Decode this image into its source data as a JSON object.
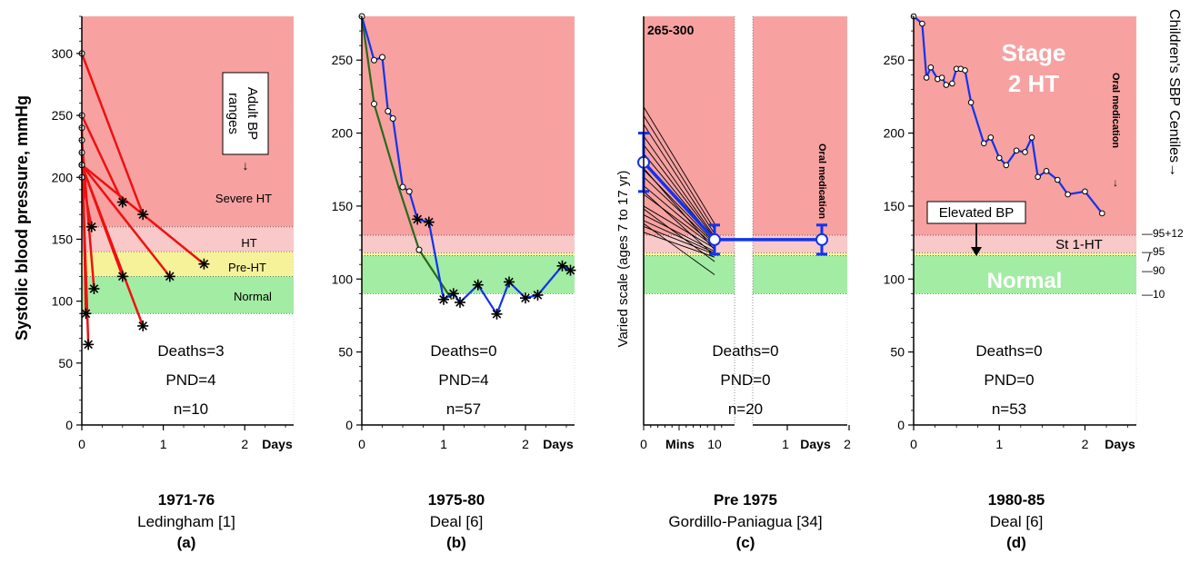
{
  "figure": {
    "y_axis_label": "Systolic blood pressure, mmHg",
    "varied_scale_label": "Varied scale (ages 7 to 17 yr)",
    "centiles_label": "Children's SBP Centiles→"
  },
  "colors": {
    "severe": "#f7a1a1",
    "ht": "#f9c8c8",
    "preht": "#f6f29a",
    "normal": "#a3eca3",
    "red_line": "#ee1111",
    "blue_line": "#1133ee",
    "green_line": "#2a6a1a"
  },
  "chart_data": [
    {
      "id": "a",
      "type": "line",
      "title_year": "1971-76",
      "title_source": "Ledingham [1]",
      "label": "(a)",
      "xlabel": "Days",
      "x_ticks": [
        "0",
        "1",
        "2"
      ],
      "y_ticks": [
        "0",
        "50",
        "100",
        "150",
        "200",
        "250",
        "300"
      ],
      "ylim": [
        0,
        330
      ],
      "xlim": [
        0,
        2.6
      ],
      "zones": [
        {
          "name": "Severe HT",
          "from": 160,
          "to": 330,
          "color": "severe"
        },
        {
          "name": "HT",
          "from": 140,
          "to": 160,
          "color": "ht"
        },
        {
          "name": "Pre-HT",
          "from": 120,
          "to": 140,
          "color": "preht"
        },
        {
          "name": "Normal",
          "from": 90,
          "to": 120,
          "color": "normal"
        }
      ],
      "annotation": "Adult BP ranges",
      "stats": [
        "Deaths=3",
        "PND=4",
        "n=10"
      ],
      "series": [
        {
          "color": "red_line",
          "points": [
            [
              0,
              300
            ],
            [
              0.75,
              170
            ]
          ]
        },
        {
          "color": "red_line",
          "points": [
            [
              0,
              250
            ],
            [
              0.5,
              180
            ]
          ]
        },
        {
          "color": "red_line",
          "points": [
            [
              0,
              240
            ],
            [
              0.05,
              90
            ]
          ]
        },
        {
          "color": "red_line",
          "points": [
            [
              0,
              230
            ],
            [
              0.15,
              110
            ]
          ]
        },
        {
          "color": "red_line",
          "points": [
            [
              0,
              220
            ],
            [
              0.08,
              65
            ]
          ]
        },
        {
          "color": "red_line",
          "points": [
            [
              0,
              210
            ],
            [
              1.5,
              130
            ]
          ]
        },
        {
          "color": "red_line",
          "points": [
            [
              0,
              210
            ],
            [
              0.75,
              80
            ]
          ]
        },
        {
          "color": "red_line",
          "points": [
            [
              0,
              210
            ],
            [
              1.08,
              120
            ]
          ]
        },
        {
          "color": "red_line",
          "points": [
            [
              0,
              210
            ],
            [
              0.5,
              120
            ]
          ]
        },
        {
          "color": "red_line",
          "points": [
            [
              0,
              200
            ],
            [
              0.12,
              160
            ]
          ]
        }
      ]
    },
    {
      "id": "b",
      "type": "line",
      "title_year": "1975-80",
      "title_source": "Deal [6]",
      "label": "(b)",
      "xlabel": "Days",
      "x_ticks": [
        "0",
        "1",
        "2"
      ],
      "y_ticks": [
        "0",
        "50",
        "100",
        "150",
        "200",
        "250"
      ],
      "ylim": [
        0,
        280
      ],
      "xlim": [
        0,
        2.6
      ],
      "zones": [
        {
          "name": "",
          "from": 130,
          "to": 280,
          "color": "severe"
        },
        {
          "name": "",
          "from": 118,
          "to": 130,
          "color": "ht"
        },
        {
          "name": "",
          "from": 116,
          "to": 118,
          "color": "preht"
        },
        {
          "name": "",
          "from": 90,
          "to": 116,
          "color": "normal"
        }
      ],
      "stats": [
        "Deaths=0",
        "PND=4",
        "n=57"
      ],
      "series": [
        {
          "color": "blue_line",
          "points": [
            [
              0,
              280
            ],
            [
              0.15,
              250
            ],
            [
              0.25,
              252
            ],
            [
              0.32,
              215
            ],
            [
              0.38,
              210
            ],
            [
              0.5,
              163
            ],
            [
              0.58,
              160
            ],
            [
              0.68,
              141
            ],
            [
              0.82,
              139
            ],
            [
              1.0,
              86
            ],
            [
              1.12,
              90
            ],
            [
              1.2,
              84
            ],
            [
              1.42,
              96
            ],
            [
              1.65,
              76
            ],
            [
              1.8,
              98
            ],
            [
              2.0,
              87
            ],
            [
              2.15,
              89
            ],
            [
              2.45,
              109
            ],
            [
              2.55,
              106
            ]
          ]
        },
        {
          "color": "green_line",
          "points": [
            [
              0,
              280
            ],
            [
              0.15,
              220
            ],
            [
              0.45,
              163
            ],
            [
              0.7,
              120
            ],
            [
              1.1,
              86
            ]
          ]
        }
      ]
    },
    {
      "id": "c",
      "type": "line",
      "title_year": "Pre 1975",
      "title_source": "Gordillo-Paniagua [34]",
      "label": "(c)",
      "xlabel_left": "Mins",
      "xlabel_right": "Days",
      "x_ticks_left": [
        "0",
        "10"
      ],
      "x_ticks_right": [
        "1",
        "2"
      ],
      "y_ticks": [],
      "corner_note": "265-300",
      "annotation": "Oral medication",
      "stats": [
        "Deaths=0",
        "PND=0",
        "n=20"
      ],
      "zones": [
        {
          "name": "",
          "from": 130,
          "to": 280,
          "color": "severe"
        },
        {
          "name": "",
          "from": 118,
          "to": 130,
          "color": "ht"
        },
        {
          "name": "",
          "from": 116,
          "to": 118,
          "color": "preht"
        },
        {
          "name": "",
          "from": 90,
          "to": 116,
          "color": "normal"
        }
      ],
      "mean_series": [
        [
          0,
          180
        ],
        [
          10,
          127
        ],
        [
          2,
          127
        ]
      ],
      "mean_error": [
        20,
        10,
        10
      ]
    },
    {
      "id": "d",
      "type": "line",
      "title_year": "1980-85",
      "title_source": "Deal [6]",
      "label": "(d)",
      "xlabel": "Days",
      "x_ticks": [
        "0",
        "1",
        "2"
      ],
      "y_ticks": [
        "0",
        "50",
        "100",
        "150",
        "200",
        "250"
      ],
      "ylim": [
        0,
        280
      ],
      "xlim": [
        0,
        2.6
      ],
      "zones": [
        {
          "name": "Stage 2 HT",
          "from": 130,
          "to": 280,
          "color": "severe"
        },
        {
          "name": "St 1-HT",
          "from": 118,
          "to": 130,
          "color": "ht"
        },
        {
          "name": "",
          "from": 116,
          "to": 118,
          "color": "preht"
        },
        {
          "name": "Normal",
          "from": 90,
          "to": 116,
          "color": "normal"
        }
      ],
      "annotation": "Oral medication",
      "elevated_label": "Elevated BP",
      "centile_ticks": [
        "95+12",
        "95",
        "90",
        "10"
      ],
      "stats": [
        "Deaths=0",
        "PND=0",
        "n=53"
      ],
      "series": [
        {
          "color": "blue_line",
          "points": [
            [
              0,
              280
            ],
            [
              0.1,
              275
            ],
            [
              0.15,
              238
            ],
            [
              0.2,
              245
            ],
            [
              0.28,
              237
            ],
            [
              0.33,
              238
            ],
            [
              0.38,
              233
            ],
            [
              0.45,
              234
            ],
            [
              0.5,
              244
            ],
            [
              0.55,
              244
            ],
            [
              0.6,
              243
            ],
            [
              0.67,
              221
            ],
            [
              0.82,
              193
            ],
            [
              0.9,
              197
            ],
            [
              1.0,
              183
            ],
            [
              1.08,
              178
            ],
            [
              1.2,
              188
            ],
            [
              1.3,
              187
            ],
            [
              1.38,
              197
            ],
            [
              1.45,
              170
            ],
            [
              1.55,
              174
            ],
            [
              1.68,
              168
            ],
            [
              1.8,
              158
            ],
            [
              2.0,
              160
            ],
            [
              2.2,
              145
            ]
          ]
        }
      ]
    }
  ],
  "captions": [
    {
      "year": "1971-76",
      "source": "Ledingham [1]",
      "label": "(a)"
    },
    {
      "year": "1975-80",
      "source": "Deal [6]",
      "label": "(b)"
    },
    {
      "year": "Pre 1975",
      "source": "Gordillo-Paniagua [34]",
      "label": "(c)"
    },
    {
      "year": "1980-85",
      "source": "Deal [6]",
      "label": "(d)"
    }
  ]
}
